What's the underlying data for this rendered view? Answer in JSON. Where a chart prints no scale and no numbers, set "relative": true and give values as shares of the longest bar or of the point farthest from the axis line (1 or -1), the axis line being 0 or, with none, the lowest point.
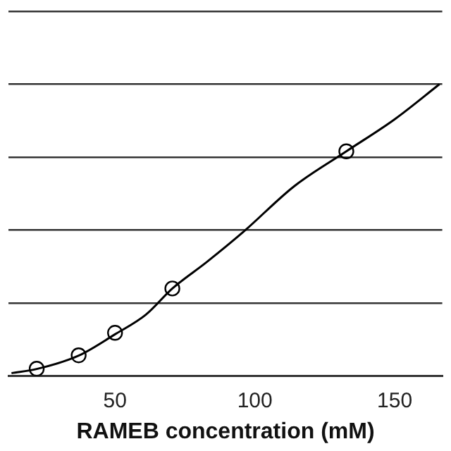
{
  "chart_data": {
    "type": "scatter",
    "xlabel": "RAMEB concentration (mM)",
    "xlim": [
      12,
      167
    ],
    "xticks": [
      50,
      100,
      150
    ],
    "relative": true,
    "grid": "y",
    "legend": false,
    "series": [
      {
        "type": "scatter",
        "marker": "circle",
        "color": "#000000",
        "x": [
          22,
          37,
          50,
          70.5,
          132.7
        ],
        "values": [
          0.025,
          0.071,
          0.148,
          0.3,
          0.77
        ]
      },
      {
        "type": "line",
        "marker": "none",
        "color": "#000000",
        "x": [
          13,
          22,
          37,
          50,
          61,
          70.5,
          82.7,
          96,
          114,
          132.7,
          150,
          166
        ],
        "values": [
          0.01,
          0.024,
          0.07,
          0.143,
          0.21,
          0.3,
          0.39,
          0.495,
          0.65,
          0.77,
          0.88,
          1
        ]
      }
    ]
  }
}
